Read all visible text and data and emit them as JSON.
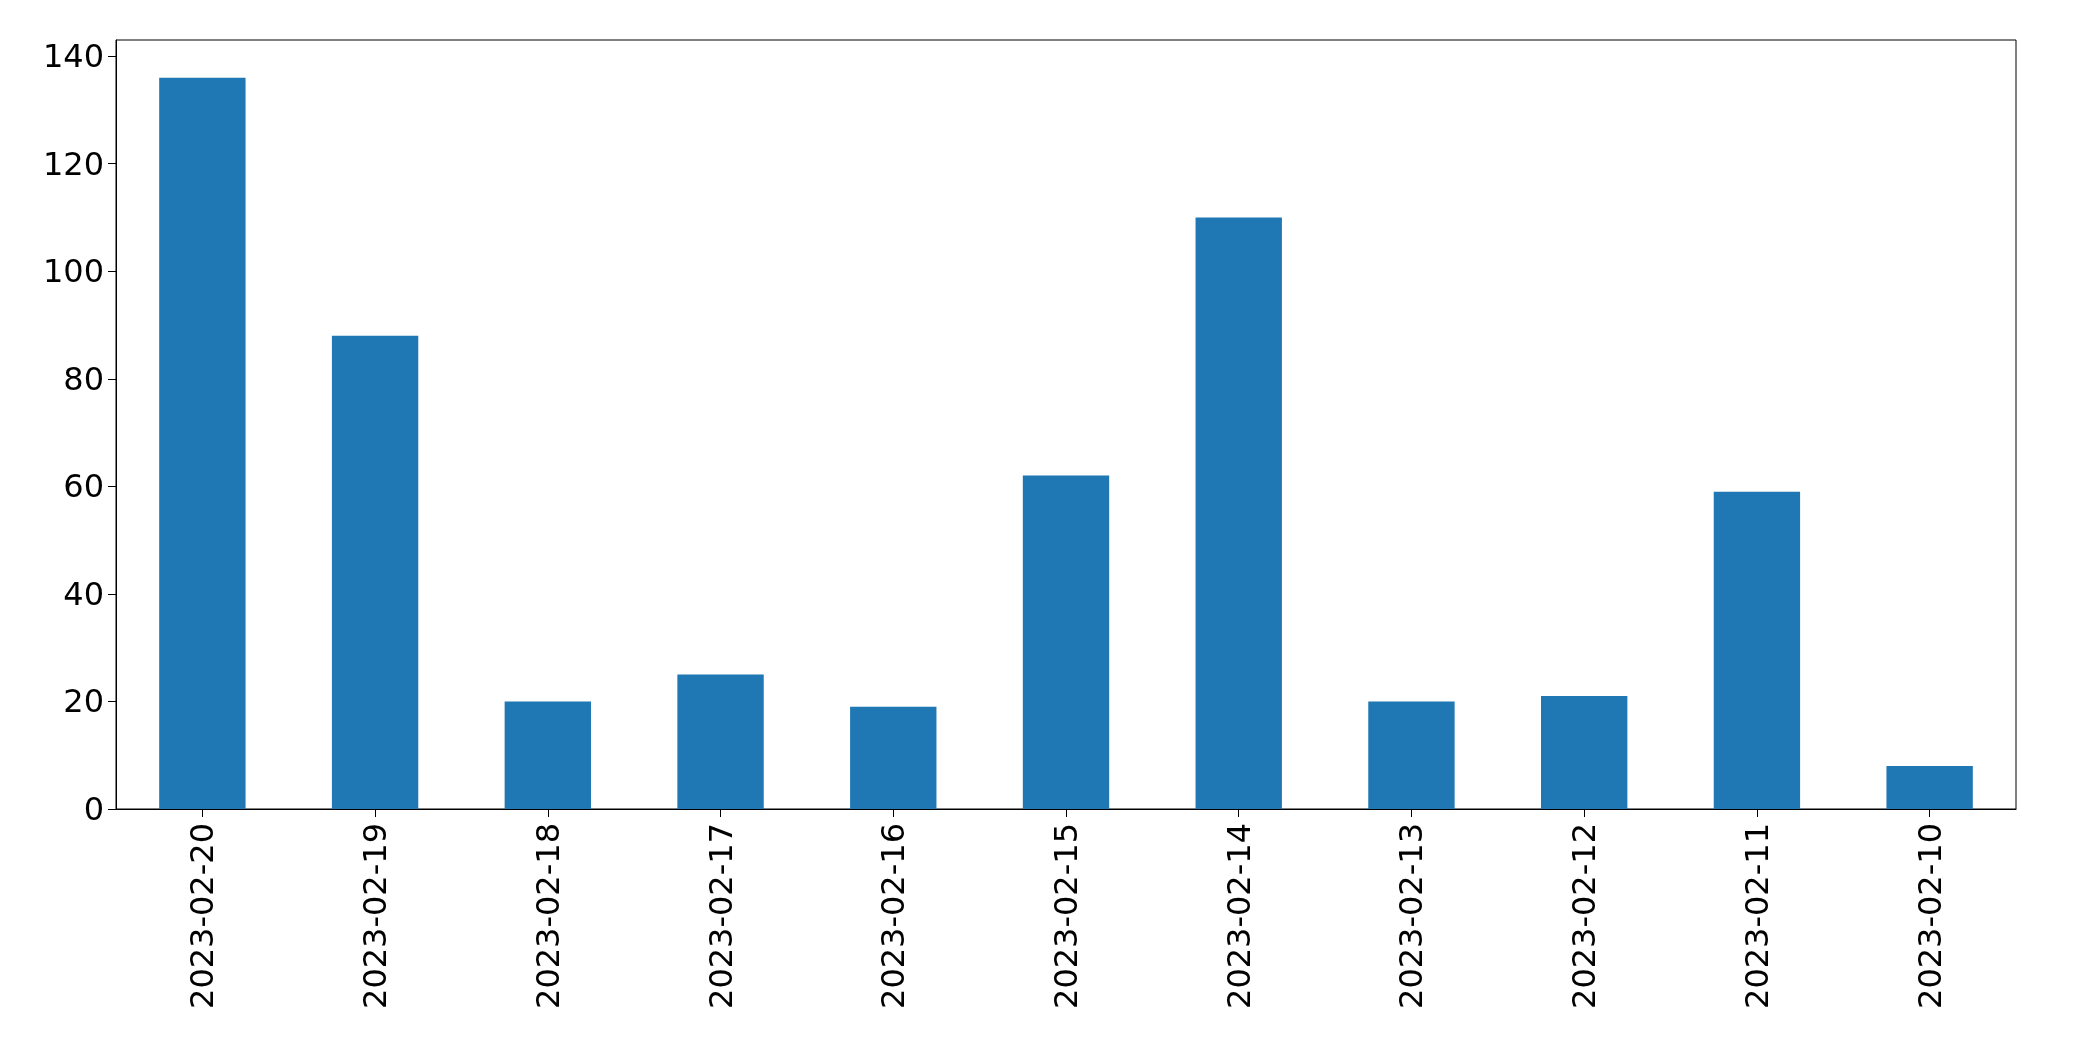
{
  "chart_data": {
    "type": "bar",
    "categories": [
      "2023-02-20",
      "2023-02-19",
      "2023-02-18",
      "2023-02-17",
      "2023-02-16",
      "2023-02-15",
      "2023-02-14",
      "2023-02-13",
      "2023-02-12",
      "2023-02-11",
      "2023-02-10"
    ],
    "values": [
      136,
      88,
      20,
      25,
      19,
      62,
      110,
      20,
      21,
      59,
      8
    ],
    "color": "#1f77b4",
    "ylim": [
      0,
      143
    ],
    "yticks": [
      0,
      20,
      40,
      60,
      80,
      100,
      120,
      140
    ]
  }
}
